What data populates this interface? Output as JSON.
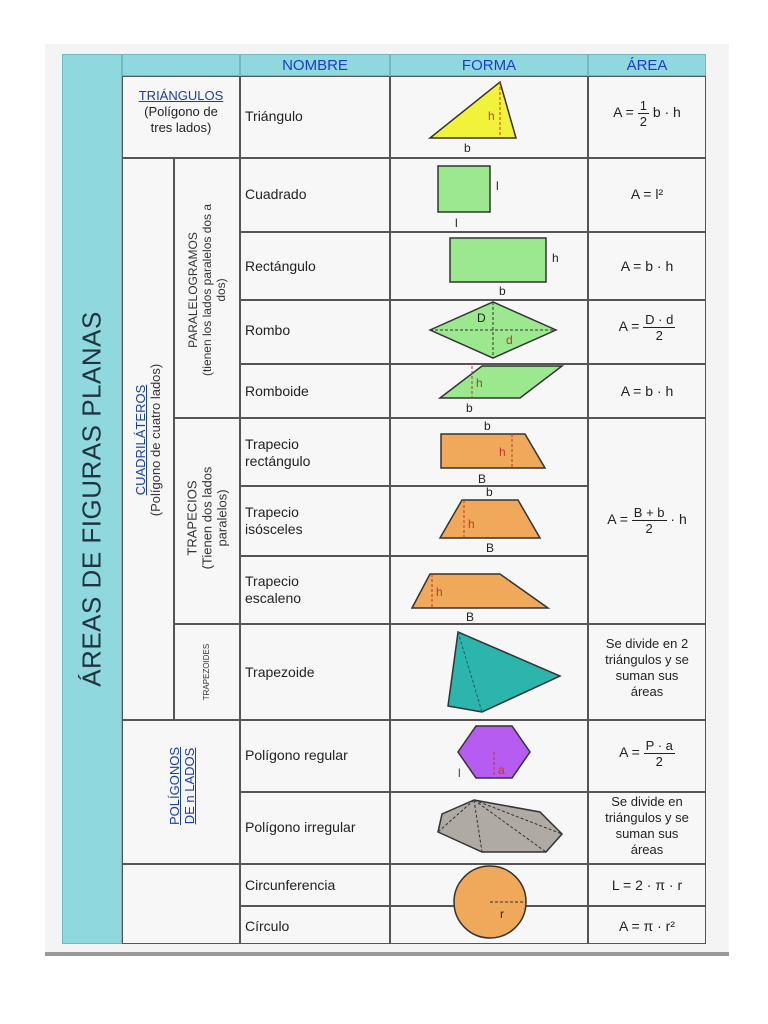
{
  "title": "ÁREAS DE FIGURAS PLANAS",
  "headers": {
    "nombre": "NOMBRE",
    "forma": "FORMA",
    "area": "ÁREA"
  },
  "groups": {
    "triangulos": {
      "title": "TRIÁNGULOS",
      "desc_1": "(Polígono de",
      "desc_2": "tres lados)"
    },
    "cuadrilateros": {
      "title": "CUADRILÁTEROS",
      "desc": "(Polígono de cuatro lados)"
    },
    "paralelogramos": {
      "title": "PARALELOGRAMOS",
      "desc_1": "(tienen los lados paralelos dos a",
      "desc_2": "dos)"
    },
    "trapecios": {
      "title": "TRAPECIOS",
      "desc_1": "(Tienen dos lados",
      "desc_2": "paralelos)"
    },
    "trapezoides": {
      "title": "TRAPEZOIDES"
    },
    "poligonos": {
      "title_1": "POLÍGONOS",
      "title_2": "DE n LADOS"
    }
  },
  "rows": {
    "triangulo": {
      "name": "Triángulo",
      "area_prefix": "A =",
      "num": "1",
      "den": "2",
      "area_suffix": "b · h"
    },
    "cuadrado": {
      "name": "Cuadrado",
      "area": "A = l²"
    },
    "rectangulo": {
      "name": "Rectángulo",
      "area": "A = b · h"
    },
    "rombo": {
      "name": "Rombo",
      "area_prefix": "A =",
      "num": "D · d",
      "den": "2"
    },
    "romboide": {
      "name": "Romboide",
      "area": "A = b · h"
    },
    "trapecio_rect": {
      "name_1": "Trapecio",
      "name_2": "rectángulo"
    },
    "trapecio_iso": {
      "name_1": "Trapecio",
      "name_2": "isósceles"
    },
    "trapecio_esc": {
      "name_1": "Trapecio",
      "name_2": "escaleno"
    },
    "trapecio_area": {
      "area_prefix": "A =",
      "num": "B + b",
      "den": "2",
      "area_suffix": "· h"
    },
    "trapezoide": {
      "name": "Trapezoide",
      "note_1": "Se divide en 2",
      "note_2": "triángulos y se",
      "note_3": "suman sus",
      "note_4": "áreas"
    },
    "poligono_reg": {
      "name": "Polígono regular",
      "area_prefix": "A =",
      "num": "P · a",
      "den": "2"
    },
    "poligono_irr": {
      "name": "Polígono irregular",
      "note_1": "Se divide en",
      "note_2": "triángulos y se",
      "note_3": "suman sus",
      "note_4": "áreas"
    },
    "circunferencia": {
      "name": "Circunferencia",
      "area": "L = 2 · π · r"
    },
    "circulo": {
      "name": "Círculo",
      "area": "A = π · r²"
    }
  },
  "shape_labels": {
    "b": "b",
    "h": "h",
    "l": "l",
    "B": "B",
    "D": "D",
    "d": "d",
    "a": "a",
    "r": "r"
  },
  "colors": {
    "header_bg": "#8fd8de",
    "header_text": "#1c3cc8",
    "triangle": "#f2f23a",
    "green": "#9be88f",
    "orange": "#f0a85a",
    "teal": "#2bb5ad",
    "purple": "#b65cf0",
    "gray": "#b0aaa5",
    "circle": "#f0a85a"
  }
}
